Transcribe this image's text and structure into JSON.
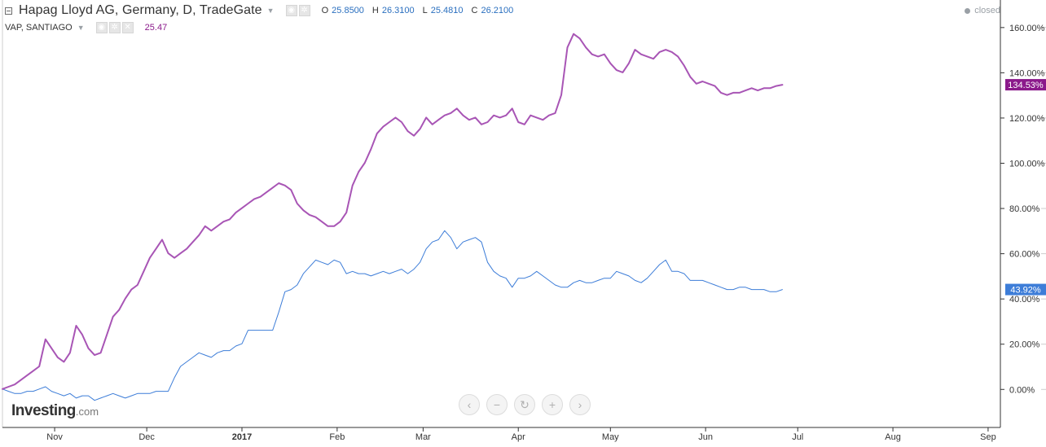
{
  "header": {
    "title": "Hapag Lloyd AG, Germany, D, TradeGate",
    "ohlc": [
      {
        "key": "O",
        "value": "25.8500"
      },
      {
        "key": "H",
        "value": "26.3100"
      },
      {
        "key": "L",
        "value": "25.4810"
      },
      {
        "key": "C",
        "value": "26.2100"
      }
    ],
    "status": "closed"
  },
  "compare": {
    "title": "VAP, SANTIAGO",
    "value": "25.47"
  },
  "logo": {
    "main": "Investing",
    "suffix": ".com"
  },
  "nav_buttons": [
    {
      "name": "scroll-left-button",
      "icon": "‹"
    },
    {
      "name": "zoom-out-button",
      "icon": "−"
    },
    {
      "name": "reset-button",
      "icon": "↻"
    },
    {
      "name": "zoom-in-button",
      "icon": "+"
    },
    {
      "name": "scroll-right-button",
      "icon": "›"
    }
  ],
  "colors": {
    "main_series": "#3d7dd8",
    "compare_series": "#a855b5",
    "main_badge": "#3d7dd8",
    "compare_badge": "#8b1a8b",
    "axis": "#333333",
    "grid": "#e6e6e6"
  },
  "chart_data": {
    "type": "line",
    "ylim": [
      -17,
      172
    ],
    "xlim": [
      0,
      325
    ],
    "y_ticks": [
      {
        "value": 0,
        "label": "0.00%"
      },
      {
        "value": 20,
        "label": "20.00%"
      },
      {
        "value": 40,
        "label": "40.00%"
      },
      {
        "value": 60,
        "label": "60.00%"
      },
      {
        "value": 80,
        "label": "80.00%"
      },
      {
        "value": 100,
        "label": "100.00%"
      },
      {
        "value": 120,
        "label": "120.00%"
      },
      {
        "value": 140,
        "label": "140.00%"
      },
      {
        "value": 160,
        "label": "160.00%"
      }
    ],
    "x_ticks": [
      {
        "day": 17,
        "label": "Nov",
        "bold": false
      },
      {
        "day": 47,
        "label": "Dec",
        "bold": false
      },
      {
        "day": 78,
        "label": "2017",
        "bold": true
      },
      {
        "day": 109,
        "label": "Feb",
        "bold": false
      },
      {
        "day": 137,
        "label": "Mar",
        "bold": false
      },
      {
        "day": 168,
        "label": "Apr",
        "bold": false
      },
      {
        "day": 198,
        "label": "May",
        "bold": false
      },
      {
        "day": 229,
        "label": "Jun",
        "bold": false
      },
      {
        "day": 259,
        "label": "Jul",
        "bold": false
      },
      {
        "day": 290,
        "label": "Aug",
        "bold": false
      },
      {
        "day": 321,
        "label": "Sep",
        "bold": false
      }
    ],
    "series": [
      {
        "name": "Hapag Lloyd AG",
        "role": "main",
        "last_label": "43.92%",
        "x": [
          0,
          2,
          4,
          6,
          8,
          10,
          12,
          14,
          16,
          18,
          20,
          22,
          24,
          26,
          28,
          30,
          32,
          34,
          36,
          38,
          40,
          42,
          44,
          46,
          48,
          50,
          52,
          54,
          56,
          58,
          60,
          62,
          64,
          66,
          68,
          70,
          72,
          74,
          76,
          78,
          80,
          82,
          84,
          86,
          88,
          90,
          92,
          94,
          96,
          98,
          100,
          102,
          104,
          106,
          108,
          110,
          112,
          114,
          116,
          118,
          120,
          122,
          124,
          126,
          128,
          130,
          132,
          134,
          136,
          138,
          140,
          142,
          144,
          146,
          148,
          150,
          152,
          154,
          156,
          158,
          160,
          162,
          164,
          166,
          168,
          170,
          172,
          174,
          176,
          178,
          180,
          182,
          184,
          186,
          188,
          190,
          192,
          194,
          196,
          198,
          200,
          202,
          204,
          206,
          208,
          210,
          212,
          214,
          216,
          218,
          220,
          222,
          224,
          226,
          228,
          230,
          232,
          234,
          236,
          238,
          240,
          242,
          244,
          246,
          248,
          250,
          252,
          254
        ],
        "values": [
          0,
          -1,
          -2,
          -2,
          -1,
          -1,
          0,
          1,
          -1,
          -2,
          -3,
          -2,
          -4,
          -3,
          -3,
          -5,
          -4,
          -3,
          -2,
          -3,
          -4,
          -3,
          -2,
          -2,
          -2,
          -1,
          -1,
          -1,
          5,
          10,
          12,
          14,
          16,
          15,
          14,
          16,
          17,
          17,
          19,
          20,
          26,
          26,
          26,
          26,
          26,
          34,
          43,
          44,
          46,
          51,
          54,
          57,
          56,
          55,
          57,
          56,
          51,
          52,
          51,
          51,
          50,
          51,
          52,
          51,
          52,
          53,
          51,
          53,
          56,
          62,
          65,
          66,
          70,
          67,
          62,
          65,
          66,
          67,
          65,
          56,
          52,
          50,
          49,
          45,
          49,
          49,
          50,
          52,
          50,
          48,
          46,
          45,
          45,
          47,
          48,
          47,
          47,
          48,
          49,
          49,
          52,
          51,
          50,
          48,
          47,
          49,
          52,
          55,
          57,
          52,
          52,
          51,
          48,
          48,
          48,
          47,
          46,
          45,
          44,
          44,
          45,
          45,
          44,
          44,
          44,
          43,
          43,
          44
        ]
      },
      {
        "name": "VAP, SANTIAGO",
        "role": "compare",
        "last_label": "134.53%",
        "x": [
          0,
          2,
          4,
          6,
          8,
          10,
          12,
          14,
          16,
          18,
          20,
          22,
          24,
          26,
          28,
          30,
          32,
          34,
          36,
          38,
          40,
          42,
          44,
          46,
          48,
          50,
          52,
          54,
          56,
          58,
          60,
          62,
          64,
          66,
          68,
          70,
          72,
          74,
          76,
          78,
          80,
          82,
          84,
          86,
          88,
          90,
          92,
          94,
          96,
          98,
          100,
          102,
          104,
          106,
          108,
          110,
          112,
          114,
          116,
          118,
          120,
          122,
          124,
          126,
          128,
          130,
          132,
          134,
          136,
          138,
          140,
          142,
          144,
          146,
          148,
          150,
          152,
          154,
          156,
          158,
          160,
          162,
          164,
          166,
          168,
          170,
          172,
          174,
          176,
          178,
          180,
          182,
          184,
          186,
          188,
          190,
          192,
          194,
          196,
          198,
          200,
          202,
          204,
          206,
          208,
          210,
          212,
          214,
          216,
          218,
          220,
          222,
          224,
          226,
          228,
          230,
          232,
          234,
          236,
          238,
          240,
          242,
          244,
          246,
          248,
          250,
          252,
          254
        ],
        "values": [
          0,
          1,
          2,
          4,
          6,
          8,
          10,
          22,
          18,
          14,
          12,
          16,
          28,
          24,
          18,
          15,
          16,
          24,
          32,
          35,
          40,
          44,
          46,
          52,
          58,
          62,
          66,
          60,
          58,
          60,
          62,
          65,
          68,
          72,
          70,
          72,
          74,
          75,
          78,
          80,
          82,
          84,
          85,
          87,
          89,
          91,
          90,
          88,
          82,
          79,
          77,
          76,
          74,
          72,
          72,
          74,
          78,
          90,
          96,
          100,
          106,
          113,
          116,
          118,
          120,
          118,
          114,
          112,
          115,
          120,
          117,
          119,
          121,
          122,
          124,
          121,
          119,
          120,
          117,
          118,
          121,
          120,
          121,
          124,
          118,
          117,
          121,
          120,
          119,
          121,
          122,
          130,
          151,
          157,
          155,
          151,
          148,
          147,
          148,
          144,
          141,
          140,
          144,
          150,
          148,
          147,
          146,
          149,
          150,
          149,
          147,
          143,
          138,
          135,
          136,
          135,
          134,
          131,
          130,
          131,
          131,
          132,
          133,
          132,
          133,
          133,
          134,
          134.53
        ]
      }
    ]
  }
}
